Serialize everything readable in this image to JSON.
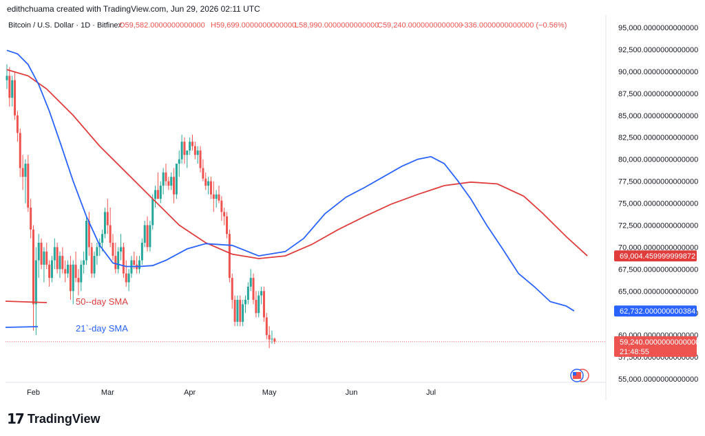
{
  "credit": "edithchuama created with TradingView.com, Jun 29, 2026 02:11 UTC",
  "brand": {
    "name": "TradingView",
    "icon": "tradingview-logo-icon"
  },
  "colors": {
    "up": "#26a69a",
    "down": "#ef5350",
    "sma21": "#2962ff",
    "sma50": "#e03c3c",
    "last": "#ef5350"
  },
  "chart_data": {
    "type": "line",
    "symbol": "Bitcoin / U.S. Dollar · 1D · Bitfinex",
    "ohlc": {
      "open": "O59,582.0000000000000",
      "high": "H59,699.0000000000000",
      "low": "L58,990.0000000000000",
      "close": "C59,240.0000000000000",
      "change": "−336.0000000000000 (−0.56%)"
    },
    "x_labels": [
      "Feb",
      "Mar",
      "Apr",
      "May",
      "Jun",
      "Jul"
    ],
    "y_ticks": [
      "55,000.0000000000000",
      "57,500.0000000000000",
      "60,000.0000000000000",
      "62,500.0000000000000",
      "65,000.0000000000000",
      "67,500.0000000000000",
      "70,000.0000000000000",
      "72,500.0000000000000",
      "75,000.0000000000000",
      "77,500.0000000000000",
      "80,000.0000000000000",
      "82,500.0000000000000",
      "85,000.0000000000000",
      "87,500.0000000000000",
      "90,000.0000000000000",
      "92,500.0000000000000",
      "95,000.0000000000000"
    ],
    "ylim": [
      54000,
      96000
    ],
    "last_price": {
      "label": "59,240.0000000000000",
      "countdown": "21:48:55",
      "value": 59240
    },
    "sma50": {
      "name": "50--day SMA",
      "badge": "69,004.459999999872",
      "points": [
        [
          0,
          90200
        ],
        [
          8,
          89500
        ],
        [
          15,
          88000
        ],
        [
          25,
          85000
        ],
        [
          35,
          81500
        ],
        [
          45,
          78500
        ],
        [
          55,
          75500
        ],
        [
          65,
          72500
        ],
        [
          75,
          70500
        ],
        [
          85,
          69200
        ],
        [
          95,
          68700
        ],
        [
          105,
          69000
        ],
        [
          115,
          70300
        ],
        [
          125,
          72000
        ],
        [
          135,
          73500
        ],
        [
          145,
          74900
        ],
        [
          155,
          76000
        ],
        [
          165,
          77000
        ],
        [
          175,
          77400
        ],
        [
          185,
          77200
        ],
        [
          195,
          75800
        ],
        [
          202,
          73900
        ],
        [
          211,
          71200
        ],
        [
          219,
          69000
        ]
      ]
    },
    "sma21": {
      "name": "21`-day SMA",
      "badge": "62,732.000000000384",
      "points": [
        [
          0,
          92400
        ],
        [
          4,
          92000
        ],
        [
          8,
          90800
        ],
        [
          12,
          88500
        ],
        [
          16,
          85500
        ],
        [
          20,
          82000
        ],
        [
          25,
          77500
        ],
        [
          30,
          73500
        ],
        [
          35,
          70200
        ],
        [
          40,
          68200
        ],
        [
          45,
          67800
        ],
        [
          50,
          67800
        ],
        [
          55,
          67900
        ],
        [
          60,
          68500
        ],
        [
          68,
          69800
        ],
        [
          75,
          70400
        ],
        [
          85,
          70200
        ],
        [
          95,
          69000
        ],
        [
          105,
          69500
        ],
        [
          112,
          71000
        ],
        [
          120,
          73800
        ],
        [
          128,
          75700
        ],
        [
          135,
          76800
        ],
        [
          142,
          78000
        ],
        [
          149,
          79200
        ],
        [
          155,
          80000
        ],
        [
          160,
          80300
        ],
        [
          165,
          79500
        ],
        [
          170,
          77600
        ],
        [
          175,
          75500
        ],
        [
          181,
          72500
        ],
        [
          187,
          69800
        ],
        [
          193,
          67000
        ],
        [
          199,
          65500
        ],
        [
          205,
          63800
        ],
        [
          211,
          63300
        ],
        [
          214,
          62732
        ]
      ]
    },
    "candles": [
      [
        89000,
        90800,
        88000,
        89500
      ],
      [
        89500,
        90500,
        86000,
        87000
      ],
      [
        87000,
        89500,
        86000,
        89000
      ],
      [
        89000,
        90000,
        84500,
        85000
      ],
      [
        85000,
        85500,
        82000,
        83000
      ],
      [
        83000,
        83500,
        78000,
        79000
      ],
      [
        79000,
        80500,
        76500,
        78000
      ],
      [
        78000,
        80000,
        75000,
        79500
      ],
      [
        79500,
        80500,
        74000,
        74500
      ],
      [
        74500,
        75500,
        71000,
        72000
      ],
      [
        72000,
        72500,
        60500,
        63500
      ],
      [
        63500,
        70000,
        60000,
        68500
      ],
      [
        68500,
        71500,
        66500,
        70500
      ],
      [
        70500,
        71000,
        67500,
        68000
      ],
      [
        68000,
        70000,
        66000,
        69500
      ],
      [
        69500,
        70500,
        67500,
        68000
      ],
      [
        68000,
        68500,
        65500,
        66500
      ],
      [
        66500,
        69000,
        66000,
        68500
      ],
      [
        68500,
        71000,
        67500,
        70000
      ],
      [
        70000,
        70500,
        67000,
        67500
      ],
      [
        67500,
        69500,
        66500,
        69000
      ],
      [
        69000,
        70000,
        67000,
        67500
      ],
      [
        67500,
        68500,
        66000,
        67000
      ],
      [
        67000,
        68500,
        66500,
        68000
      ],
      [
        68000,
        69000,
        64000,
        65000
      ],
      [
        65000,
        68500,
        63500,
        68000
      ],
      [
        68000,
        69500,
        66000,
        66500
      ],
      [
        66500,
        67500,
        64500,
        66000
      ],
      [
        66000,
        68500,
        65000,
        68000
      ],
      [
        68000,
        69500,
        67000,
        68500
      ],
      [
        68500,
        73500,
        68000,
        73000
      ],
      [
        73000,
        74000,
        69000,
        70000
      ],
      [
        70000,
        70500,
        66500,
        67000
      ],
      [
        67000,
        69500,
        66500,
        69000
      ],
      [
        69000,
        70500,
        68000,
        70000
      ],
      [
        70000,
        71000,
        69000,
        70500
      ],
      [
        70500,
        72000,
        69500,
        71500
      ],
      [
        71500,
        74500,
        71000,
        74000
      ],
      [
        74000,
        75500,
        71500,
        72500
      ],
      [
        72500,
        74500,
        70000,
        70500
      ],
      [
        70500,
        71500,
        68500,
        69000
      ],
      [
        69000,
        70500,
        67000,
        67500
      ],
      [
        67500,
        70000,
        67000,
        69500
      ],
      [
        69500,
        71500,
        68500,
        70000
      ],
      [
        70000,
        70500,
        66500,
        67000
      ],
      [
        67000,
        68500,
        65500,
        66000
      ],
      [
        66000,
        67500,
        65000,
        67000
      ],
      [
        67000,
        69000,
        66500,
        68500
      ],
      [
        68500,
        69500,
        67500,
        68000
      ],
      [
        68000,
        69000,
        67000,
        67500
      ],
      [
        67500,
        69000,
        67000,
        68500
      ],
      [
        68500,
        71000,
        68000,
        70500
      ],
      [
        70500,
        73000,
        70000,
        72500
      ],
      [
        72500,
        73500,
        69500,
        70000
      ],
      [
        70000,
        73000,
        69500,
        72500
      ],
      [
        72500,
        76000,
        72000,
        75500
      ],
      [
        75500,
        77000,
        74500,
        76500
      ],
      [
        76500,
        78500,
        75500,
        75500
      ],
      [
        75500,
        77500,
        75000,
        77000
      ],
      [
        77000,
        79000,
        76000,
        78500
      ],
      [
        78500,
        79500,
        77000,
        77500
      ],
      [
        77500,
        78000,
        76500,
        77000
      ],
      [
        77000,
        78500,
        76500,
        78000
      ],
      [
        78000,
        79000,
        75000,
        76000
      ],
      [
        76000,
        79500,
        75500,
        79500
      ],
      [
        79500,
        81000,
        78000,
        80000
      ],
      [
        80000,
        82800,
        79500,
        82000
      ],
      [
        82000,
        82500,
        79500,
        80500
      ],
      [
        80500,
        81000,
        79000,
        81000
      ],
      [
        81000,
        82500,
        80500,
        82000
      ],
      [
        82000,
        82800,
        81000,
        81500
      ],
      [
        81500,
        82000,
        80000,
        80500
      ],
      [
        80500,
        81500,
        79500,
        81000
      ],
      [
        81000,
        81500,
        78500,
        79000
      ],
      [
        79000,
        80000,
        77500,
        77800
      ],
      [
        77800,
        78500,
        76500,
        77000
      ],
      [
        77000,
        78000,
        76000,
        77500
      ],
      [
        77500,
        78000,
        75500,
        76000
      ],
      [
        76000,
        77500,
        74000,
        75500
      ],
      [
        75500,
        76500,
        74500,
        76000
      ],
      [
        76000,
        77000,
        75000,
        75300
      ],
      [
        75300,
        75800,
        73000,
        74000
      ],
      [
        74000,
        74500,
        72500,
        73500
      ],
      [
        73500,
        74000,
        71000,
        71500
      ],
      [
        71500,
        72000,
        66000,
        66500
      ],
      [
        66500,
        67000,
        63000,
        64000
      ],
      [
        64000,
        64500,
        61000,
        61500
      ],
      [
        61500,
        64500,
        61000,
        64000
      ],
      [
        64000,
        64500,
        61000,
        61500
      ],
      [
        61500,
        64000,
        61000,
        63500
      ],
      [
        63500,
        64500,
        62500,
        64000
      ],
      [
        64000,
        66000,
        63500,
        65500
      ],
      [
        65500,
        67500,
        65000,
        66500
      ],
      [
        66500,
        67000,
        63500,
        64000
      ],
      [
        64000,
        65000,
        62000,
        62500
      ],
      [
        62500,
        65000,
        62000,
        64500
      ],
      [
        64500,
        65500,
        63500,
        65000
      ],
      [
        65000,
        65500,
        61500,
        62000
      ],
      [
        62000,
        62500,
        59500,
        60000
      ],
      [
        60000,
        61000,
        58500,
        59500
      ],
      [
        59500,
        60500,
        59000,
        59580
      ],
      [
        59580,
        59700,
        58990,
        59240
      ]
    ]
  }
}
